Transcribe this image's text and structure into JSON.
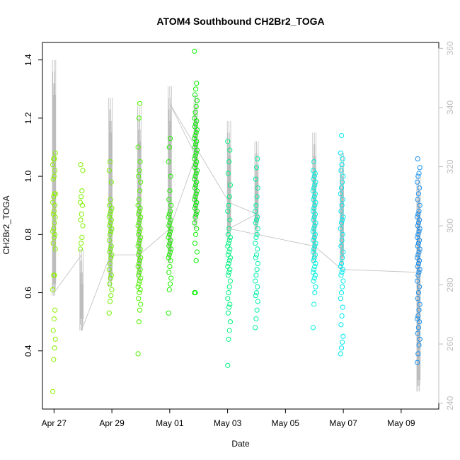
{
  "chart_data": {
    "type": "scatter",
    "title": "ATOM4 Southbound CH2Br2_TOGA",
    "xlabel": "Date",
    "ylabel": "CH2Br2_TOGA",
    "x_ticks": [
      "Apr 27",
      "Apr 29",
      "May 01",
      "May 03",
      "May 05",
      "May 07",
      "May 09"
    ],
    "x_tick_days": [
      0,
      2,
      4,
      6,
      8,
      10,
      12
    ],
    "xlim_days": [
      -0.4,
      13.3
    ],
    "ylim": [
      0.2,
      1.46
    ],
    "y_ticks": [
      0.4,
      0.6,
      0.8,
      1.0,
      1.2,
      1.4
    ],
    "y_tick_labels": [
      "0.4",
      "0.6",
      "0.8",
      "1.0",
      "1.2",
      "1.4"
    ],
    "y2_ticks": [
      240,
      260,
      280,
      300,
      320,
      340,
      360
    ],
    "y2lim": [
      238,
      362
    ],
    "grid": false,
    "color_ramp": [
      "#8cf000",
      "#58f000",
      "#00ee00",
      "#00f090",
      "#00f0f0",
      "#00c0f0",
      "#1890f0"
    ],
    "series": [
      {
        "x": 0.0,
        "values": [
          0.26,
          0.37,
          0.41,
          0.44,
          0.47,
          0.51,
          0.54,
          0.61,
          0.66,
          0.66,
          0.75,
          0.77,
          0.79,
          0.8,
          0.81,
          0.82,
          0.84,
          0.86,
          0.87,
          0.88,
          0.9,
          0.91,
          0.93,
          0.94,
          0.94,
          0.99,
          1.0,
          1.02,
          1.04,
          1.06,
          1.06,
          1.08
        ],
        "color": "#8cf000"
      },
      {
        "x": 0.95,
        "values": [
          0.75,
          0.77,
          0.79,
          0.83,
          0.85,
          0.87,
          0.9,
          0.91,
          0.93,
          0.95,
          1.02,
          1.04
        ],
        "color": "#80f000"
      },
      {
        "x": 1.95,
        "values": [
          0.53,
          0.57,
          0.59,
          0.61,
          0.63,
          0.65,
          0.66,
          0.68,
          0.7,
          0.72,
          0.73,
          0.74,
          0.75,
          0.76,
          0.78,
          0.8,
          0.81,
          0.82,
          0.83,
          0.84,
          0.85,
          0.86,
          0.87,
          0.88,
          0.89,
          0.9,
          0.92,
          0.98,
          1.02,
          1.05
        ],
        "color": "#70f000"
      },
      {
        "x": 2.95,
        "values": [
          0.39,
          0.5,
          0.54,
          0.56,
          0.58,
          0.6,
          0.61,
          0.62,
          0.63,
          0.64,
          0.65,
          0.66,
          0.67,
          0.68,
          0.69,
          0.7,
          0.71,
          0.72,
          0.73,
          0.74,
          0.75,
          0.76,
          0.77,
          0.78,
          0.79,
          0.8,
          0.81,
          0.82,
          0.83,
          0.84,
          0.85,
          0.86,
          0.87,
          0.88,
          0.89,
          0.9,
          0.92,
          0.95,
          0.98,
          1.0,
          1.02,
          1.05,
          1.1,
          1.2,
          1.25
        ],
        "color": "#50f000"
      },
      {
        "x": 4.0,
        "values": [
          0.53,
          0.61,
          0.63,
          0.65,
          0.67,
          0.69,
          0.71,
          0.72,
          0.73,
          0.74,
          0.75,
          0.76,
          0.77,
          0.78,
          0.79,
          0.8,
          0.81,
          0.82,
          0.83,
          0.84,
          0.85,
          0.86,
          0.87,
          0.88,
          0.9,
          0.92,
          0.95,
          1.0,
          1.05,
          1.1,
          1.13
        ],
        "color": "#20f000"
      },
      {
        "x": 4.9,
        "values": [
          0.6,
          0.6,
          0.71,
          0.74,
          0.77,
          0.8,
          0.82,
          0.84,
          0.86,
          0.87,
          0.88,
          0.89,
          0.9,
          0.91,
          0.92,
          0.93,
          0.94,
          0.95,
          0.96,
          0.97,
          0.98,
          0.99,
          1.0,
          1.01,
          1.02,
          1.03,
          1.04,
          1.05,
          1.06,
          1.07,
          1.08,
          1.09,
          1.1,
          1.11,
          1.12,
          1.13,
          1.14,
          1.15,
          1.16,
          1.17,
          1.18,
          1.19,
          1.2,
          1.22,
          1.24,
          1.26,
          1.28,
          1.3,
          1.32,
          1.43
        ],
        "color": "#08f000"
      },
      {
        "x": 6.05,
        "values": [
          0.35,
          0.44,
          0.47,
          0.5,
          0.53,
          0.55,
          0.56,
          0.58,
          0.6,
          0.62,
          0.64,
          0.66,
          0.67,
          0.68,
          0.69,
          0.7,
          0.71,
          0.72,
          0.73,
          0.74,
          0.75,
          0.76,
          0.77,
          0.78,
          0.79,
          0.8,
          0.82,
          0.85,
          0.88,
          0.9,
          0.93,
          0.97,
          1.01,
          1.05,
          1.09,
          1.12
        ],
        "color": "#00f080"
      },
      {
        "x": 7.0,
        "values": [
          0.48,
          0.51,
          0.54,
          0.57,
          0.59,
          0.6,
          0.62,
          0.64,
          0.66,
          0.68,
          0.7,
          0.72,
          0.73,
          0.75,
          0.77,
          0.79,
          0.8,
          0.82,
          0.84,
          0.85,
          0.86,
          0.88,
          0.9,
          0.93,
          0.96,
          0.99,
          1.03,
          1.06
        ],
        "color": "#00f0a8"
      },
      {
        "x": 9.0,
        "values": [
          0.48,
          0.56,
          0.6,
          0.62,
          0.64,
          0.65,
          0.66,
          0.67,
          0.68,
          0.69,
          0.7,
          0.71,
          0.72,
          0.73,
          0.74,
          0.75,
          0.76,
          0.77,
          0.78,
          0.79,
          0.8,
          0.81,
          0.82,
          0.83,
          0.84,
          0.85,
          0.86,
          0.87,
          0.88,
          0.89,
          0.9,
          0.91,
          0.92,
          0.93,
          0.94,
          0.95,
          0.96,
          0.97,
          0.98,
          0.99,
          1.0,
          1.01,
          1.02,
          1.05
        ],
        "color": "#00f0e0"
      },
      {
        "x": 9.95,
        "values": [
          0.39,
          0.41,
          0.43,
          0.45,
          0.49,
          0.52,
          0.55,
          0.58,
          0.6,
          0.62,
          0.64,
          0.66,
          0.67,
          0.68,
          0.69,
          0.7,
          0.72,
          0.74,
          0.76,
          0.78,
          0.8,
          0.82,
          0.84,
          0.85,
          0.86,
          0.88,
          0.9,
          0.92,
          0.94,
          0.96,
          0.98,
          1.0,
          1.02,
          1.04,
          1.06,
          1.08,
          1.14
        ],
        "color": "#00e8f0"
      },
      {
        "x": 12.6,
        "values": [
          0.36,
          0.39,
          0.42,
          0.44,
          0.46,
          0.48,
          0.5,
          0.51,
          0.52,
          0.54,
          0.56,
          0.58,
          0.6,
          0.62,
          0.64,
          0.66,
          0.67,
          0.68,
          0.69,
          0.7,
          0.71,
          0.72,
          0.73,
          0.74,
          0.75,
          0.76,
          0.77,
          0.78,
          0.79,
          0.8,
          0.81,
          0.82,
          0.83,
          0.84,
          0.85,
          0.86,
          0.87,
          0.88,
          0.9,
          0.92,
          0.94,
          0.96,
          0.98,
          1.0,
          1.01,
          1.03,
          1.06
        ],
        "color": "#1890f0"
      }
    ],
    "track_line": {
      "x": [
        0.0,
        0.95,
        0.95,
        1.95,
        2.95,
        4.0,
        4.9,
        4.0,
        6.05,
        7.0,
        6.05,
        9.0,
        9.95,
        12.6
      ],
      "y": [
        0.6,
        0.73,
        0.47,
        0.73,
        0.73,
        0.82,
        1.07,
        1.25,
        0.91,
        0.87,
        0.82,
        0.76,
        0.68,
        0.67
      ]
    },
    "track_spikes": [
      {
        "x": 0.0,
        "lo": 0.59,
        "hi": 1.4
      },
      {
        "x": 0.95,
        "lo": 0.47,
        "hi": 0.75
      },
      {
        "x": 1.95,
        "lo": 0.62,
        "hi": 1.27
      },
      {
        "x": 2.95,
        "lo": 0.64,
        "hi": 1.24
      },
      {
        "x": 4.0,
        "lo": 0.7,
        "hi": 1.31
      },
      {
        "x": 4.9,
        "lo": 0.82,
        "hi": 1.28
      },
      {
        "x": 6.05,
        "lo": 0.78,
        "hi": 1.19
      },
      {
        "x": 7.0,
        "lo": 0.8,
        "hi": 1.12
      },
      {
        "x": 9.0,
        "lo": 0.7,
        "hi": 1.15
      },
      {
        "x": 9.95,
        "lo": 0.68,
        "hi": 1.08
      },
      {
        "x": 12.6,
        "lo": 0.26,
        "hi": 1.0
      }
    ]
  }
}
